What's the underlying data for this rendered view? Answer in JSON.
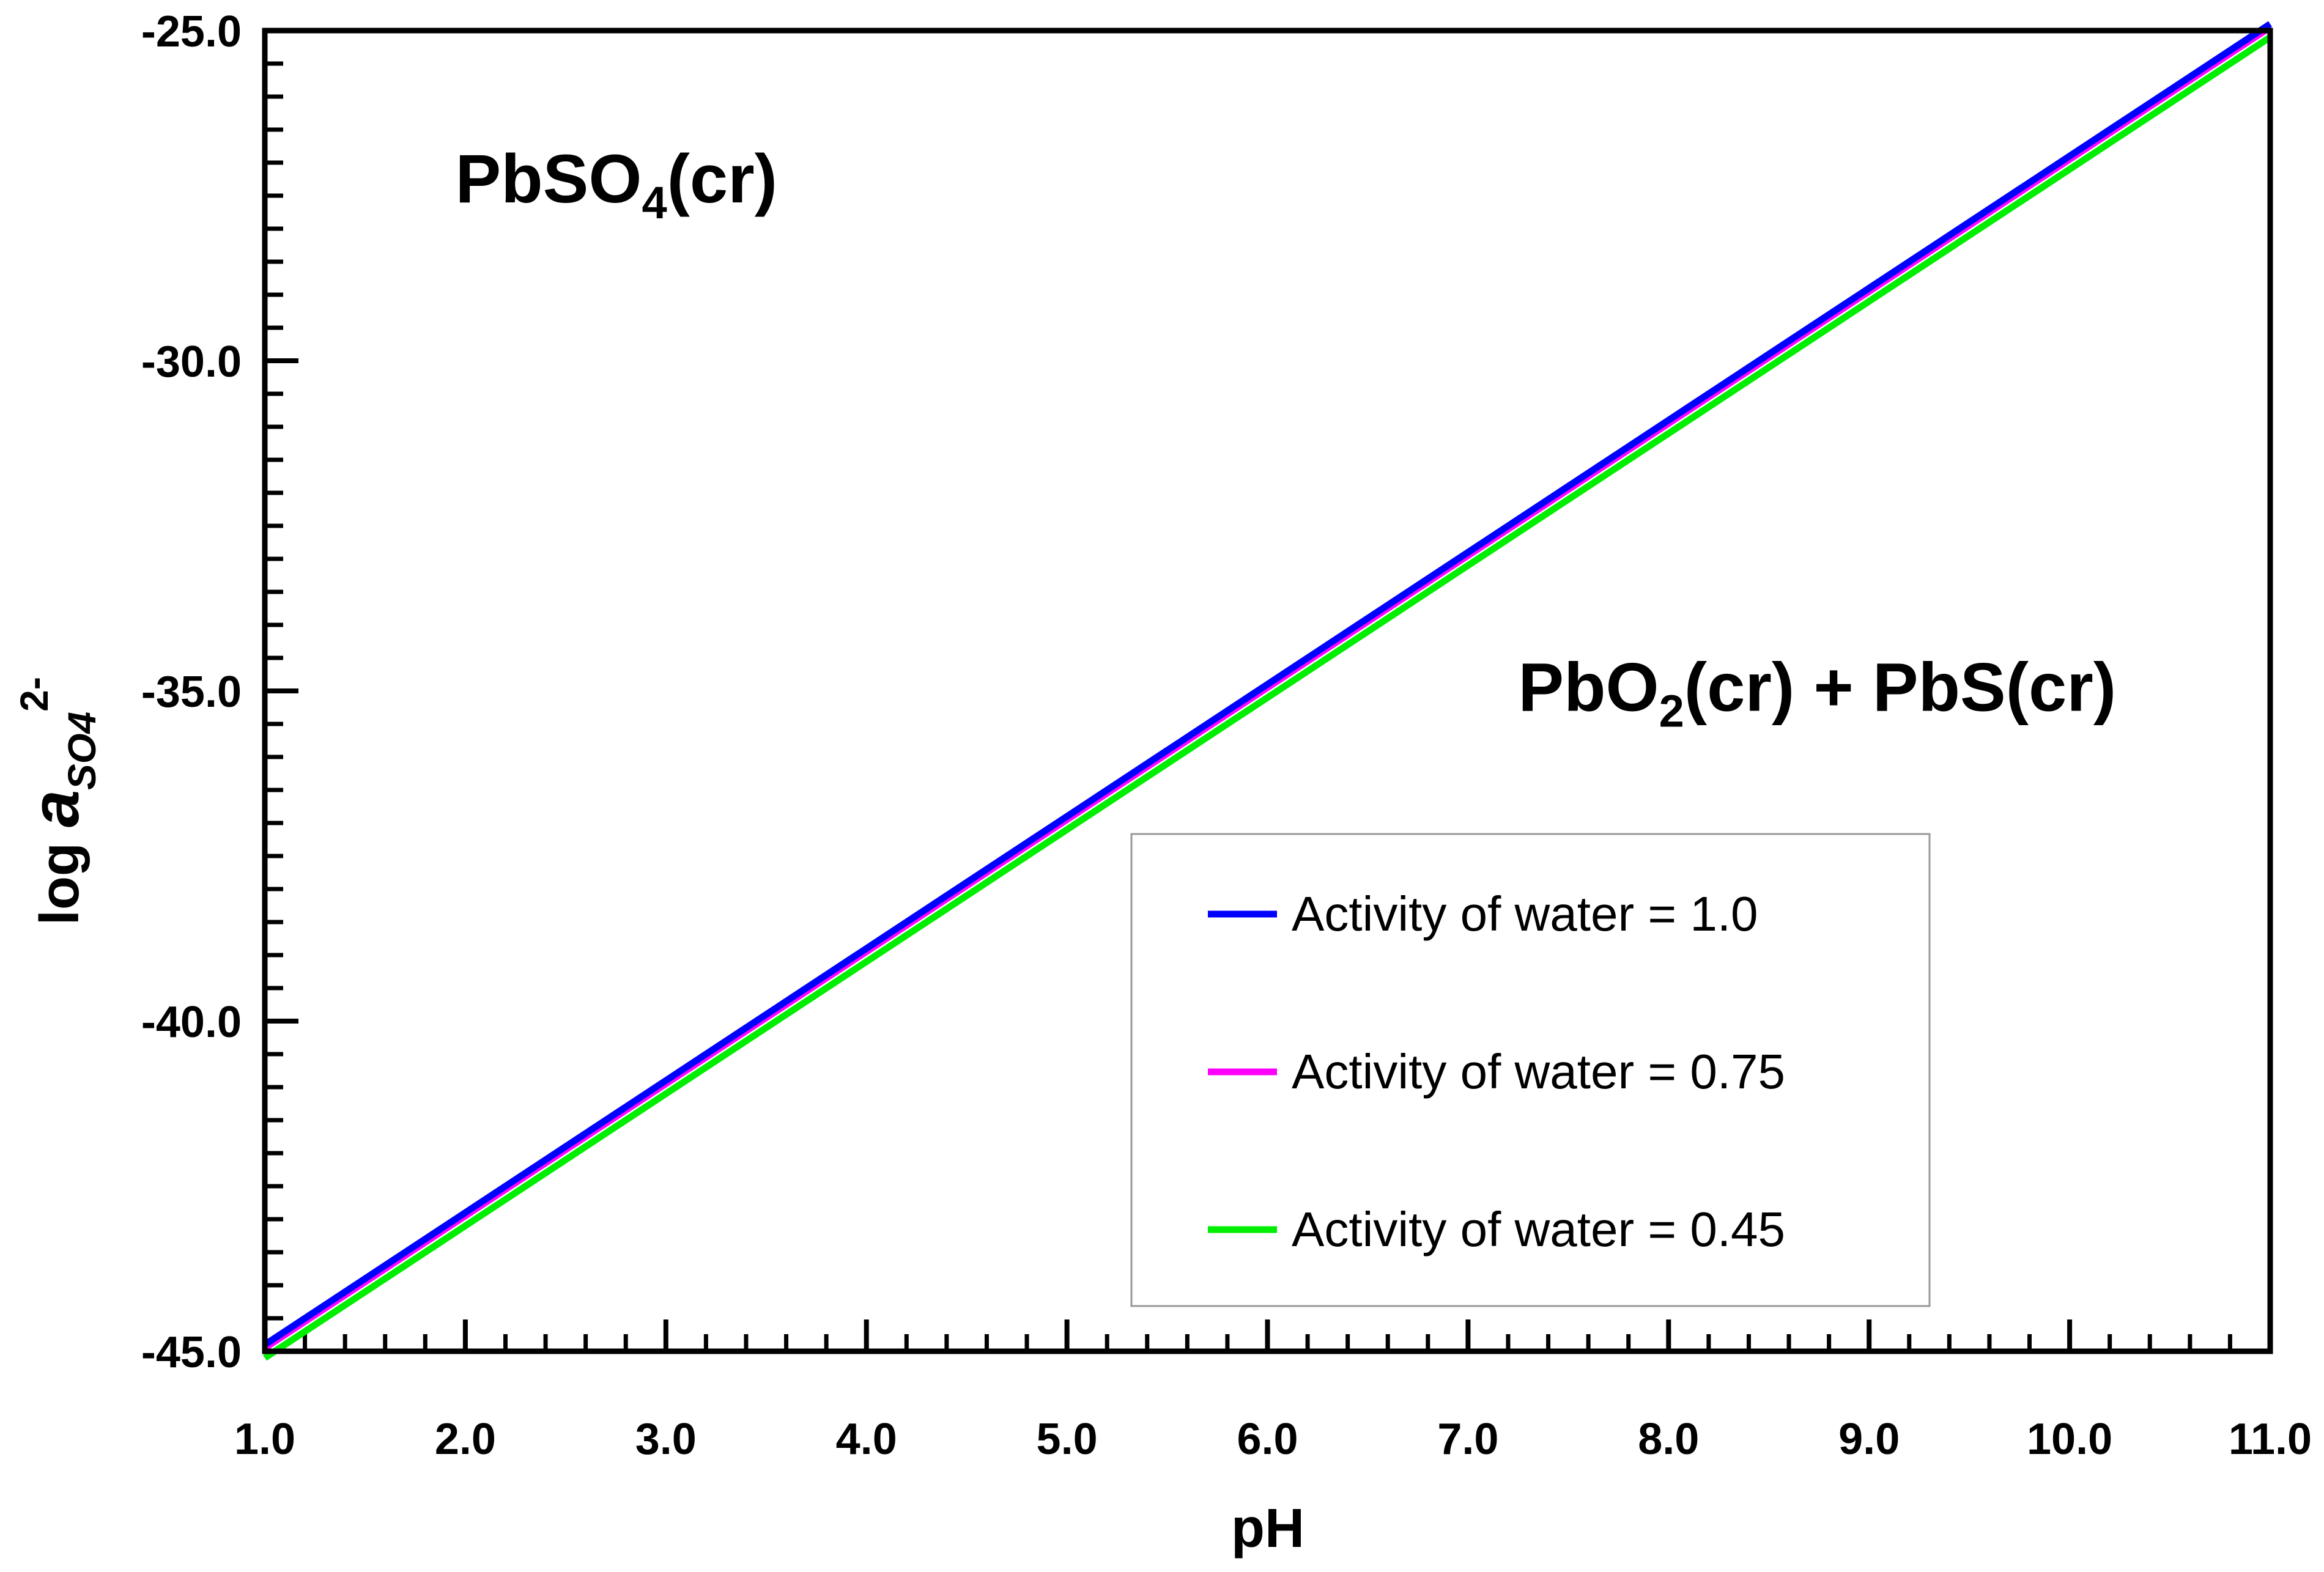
{
  "chart_data": {
    "type": "line",
    "title": "",
    "xlabel": "pH",
    "ylabel": {
      "main": "log ",
      "var": "a",
      "sub": "SO4",
      "sup": "2-"
    },
    "xlim": [
      1.0,
      11.0
    ],
    "ylim": [
      -45.0,
      -25.0
    ],
    "x_ticks": [
      1.0,
      2.0,
      3.0,
      4.0,
      5.0,
      6.0,
      7.0,
      8.0,
      9.0,
      10.0,
      11.0
    ],
    "x_tick_labels": [
      "1.0",
      "2.0",
      "3.0",
      "4.0",
      "5.0",
      "6.0",
      "7.0",
      "8.0",
      "9.0",
      "10.0",
      "11.0"
    ],
    "y_ticks": [
      -45.0,
      -40.0,
      -35.0,
      -30.0,
      -25.0
    ],
    "y_tick_labels": [
      "-45.0",
      "-40.0",
      "-35.0",
      "-30.0",
      "-25.0"
    ],
    "x_minor_step": 0.2,
    "y_minor_step": 0.5,
    "grid": false,
    "legend_position": "lower-right",
    "series": [
      {
        "name": "Activity of water = 1.0",
        "color": "#0000ff",
        "x": [
          1.0,
          11.0
        ],
        "y": [
          -44.9,
          -24.9
        ]
      },
      {
        "name": "Activity of water = 0.75",
        "color": "#ff00ff",
        "x": [
          1.0,
          11.0
        ],
        "y": [
          -44.95,
          -24.95
        ]
      },
      {
        "name": "Activity of water = 0.45",
        "color": "#00ee00",
        "x": [
          1.0,
          11.0
        ],
        "y": [
          -45.1,
          -25.1
        ]
      }
    ],
    "annotations": [
      {
        "name": "pbso4-region-label",
        "parts": [
          [
            "PbSO",
            ""
          ],
          [
            "4",
            "sub"
          ],
          [
            "(cr)",
            ""
          ]
        ],
        "x": 1.95,
        "y": -27.6
      },
      {
        "name": "pbo2-pbs-region-label",
        "parts": [
          [
            "PbO",
            ""
          ],
          [
            "2",
            "sub"
          ],
          [
            "(cr) + PbS(cr)",
            ""
          ]
        ],
        "x": 7.25,
        "y": -35.3
      }
    ]
  }
}
